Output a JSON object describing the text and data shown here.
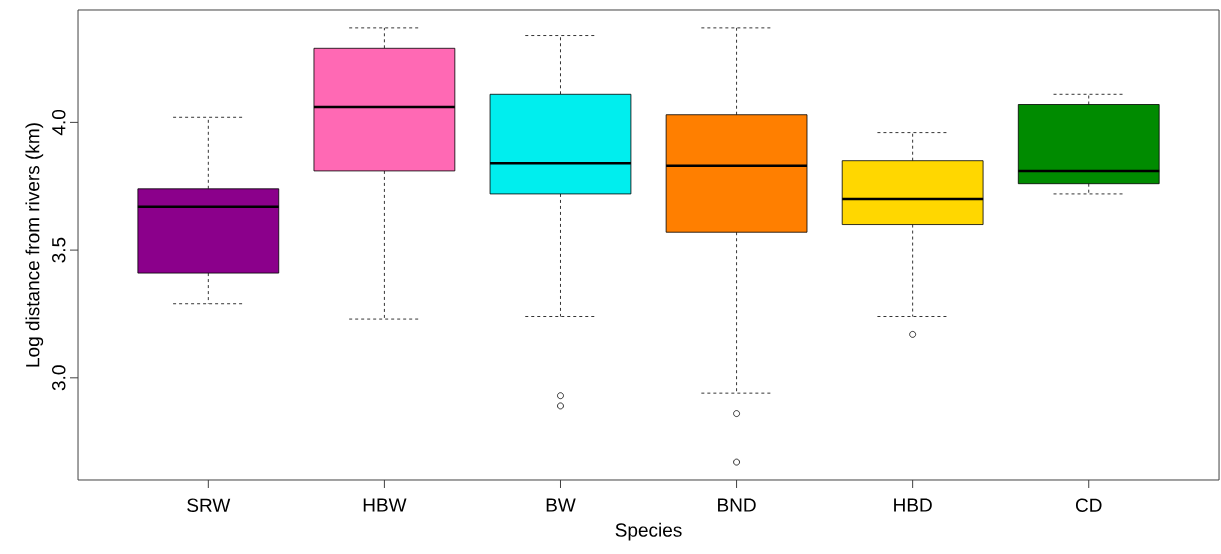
{
  "chart_data": {
    "type": "box",
    "xlabel": "Species",
    "ylabel": "Log distance from rivers (km)",
    "categories": [
      "SRW",
      "HBW",
      "BW",
      "BND",
      "HBD",
      "CD"
    ],
    "colors": [
      "#8b008b",
      "#ff69b4",
      "#00eeee",
      "#ff7f00",
      "#ffd700",
      "#008b00"
    ],
    "boxes": [
      {
        "low": 3.29,
        "q1": 3.41,
        "median": 3.67,
        "q3": 3.74,
        "high": 4.02
      },
      {
        "low": 3.23,
        "q1": 3.81,
        "median": 4.06,
        "q3": 4.29,
        "high": 4.37
      },
      {
        "low": 3.24,
        "q1": 3.72,
        "median": 3.84,
        "q3": 4.11,
        "high": 4.34,
        "outliers": [
          2.93,
          2.89
        ]
      },
      {
        "low": 2.94,
        "q1": 3.57,
        "median": 3.83,
        "q3": 4.03,
        "high": 4.37,
        "outliers": [
          2.86,
          2.67
        ]
      },
      {
        "low": 3.24,
        "q1": 3.6,
        "median": 3.7,
        "q3": 3.85,
        "high": 3.96,
        "outliers": [
          3.17
        ]
      },
      {
        "low": 3.72,
        "q1": 3.76,
        "median": 3.81,
        "q3": 4.07,
        "high": 4.11
      }
    ],
    "ylim": [
      2.6,
      4.44
    ],
    "yticks": [
      {
        "value": 3,
        "label": "3.0"
      },
      {
        "value": 3.5,
        "label": "3.5"
      },
      {
        "value": 4,
        "label": "4.0"
      }
    ],
    "grid": false
  }
}
